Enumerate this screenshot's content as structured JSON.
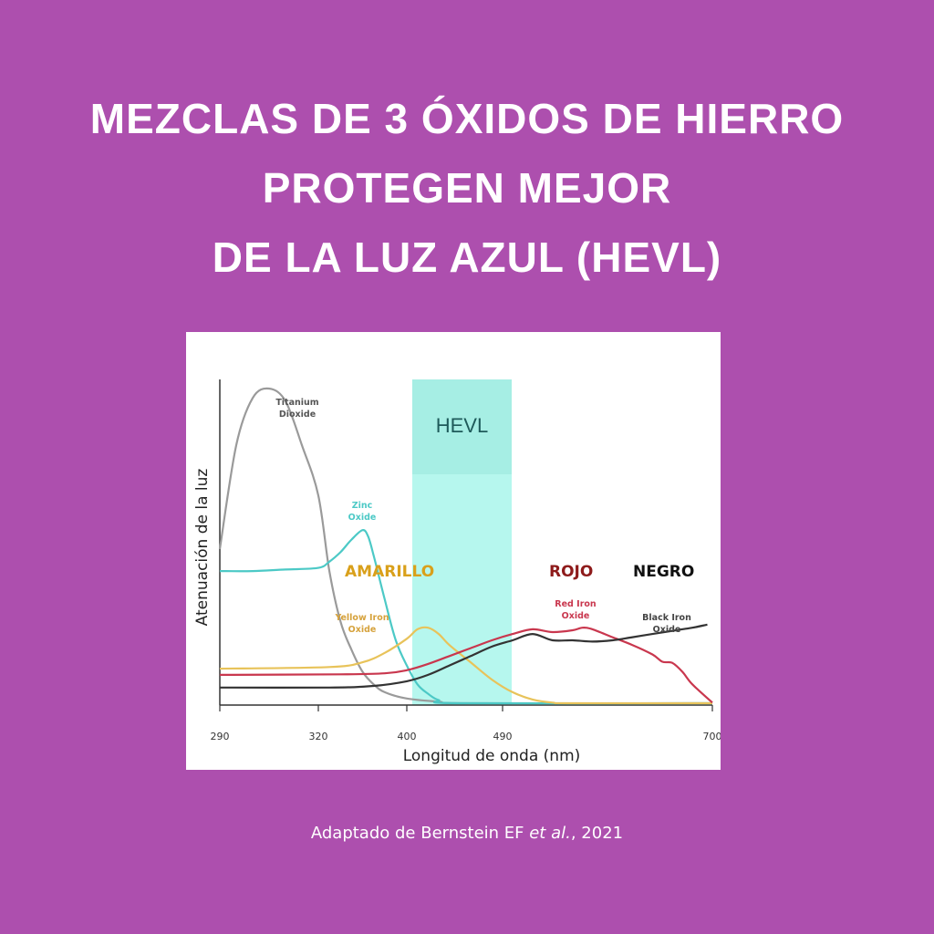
{
  "title": {
    "line1": "Mezclas de 3 óxidos de hierro",
    "line2": "protegen mejor",
    "line3": "de la luz azul (HEVL)"
  },
  "credit": {
    "prefix": "Adaptado de Bernstein EF ",
    "italic": "et al.",
    "suffix": ", 2021"
  },
  "chart_data": {
    "type": "line",
    "xlabel": "Longitud de onda (nm)",
    "ylabel": "Atenuación  de la luz",
    "x_ticks": [
      290,
      320,
      400,
      490,
      700
    ],
    "band": {
      "label": "HEVL",
      "x_range": [
        400,
        490
      ],
      "color": "#7ff5e3"
    },
    "y_range": [
      0,
      1
    ],
    "series": [
      {
        "name": "Titanium Dioxide",
        "label_lines": [
          "Titanium",
          "Dioxide"
        ],
        "color": "#9a9a9a",
        "points": [
          [
            290,
            0.49
          ],
          [
            295,
            0.82
          ],
          [
            300,
            0.97
          ],
          [
            305,
            1.0
          ],
          [
            310,
            0.96
          ],
          [
            315,
            0.82
          ],
          [
            320,
            0.66
          ],
          [
            330,
            0.42
          ],
          [
            340,
            0.26
          ],
          [
            350,
            0.17
          ],
          [
            360,
            0.1
          ],
          [
            370,
            0.06
          ],
          [
            380,
            0.035
          ],
          [
            400,
            0.015
          ],
          [
            430,
            0.005
          ],
          [
            460,
            0.0
          ],
          [
            700,
            0.0
          ]
        ]
      },
      {
        "name": "Zinc Oxide",
        "label_lines": [
          "Zinc",
          "Oxide"
        ],
        "color": "#4cc9c6",
        "points": [
          [
            290,
            0.42
          ],
          [
            300,
            0.42
          ],
          [
            310,
            0.425
          ],
          [
            320,
            0.43
          ],
          [
            330,
            0.45
          ],
          [
            340,
            0.48
          ],
          [
            350,
            0.52
          ],
          [
            360,
            0.55
          ],
          [
            365,
            0.53
          ],
          [
            370,
            0.47
          ],
          [
            380,
            0.33
          ],
          [
            390,
            0.2
          ],
          [
            400,
            0.12
          ],
          [
            410,
            0.06
          ],
          [
            420,
            0.03
          ],
          [
            430,
            0.01
          ],
          [
            450,
            0.0
          ],
          [
            700,
            0.0
          ]
        ]
      },
      {
        "name": "Yellow Iron Oxide",
        "label_lines": [
          "Yellow Iron",
          "Oxide"
        ],
        "color": "#e8c35a",
        "points": [
          [
            290,
            0.11
          ],
          [
            330,
            0.115
          ],
          [
            360,
            0.13
          ],
          [
            380,
            0.16
          ],
          [
            400,
            0.205
          ],
          [
            410,
            0.235
          ],
          [
            420,
            0.24
          ],
          [
            430,
            0.22
          ],
          [
            440,
            0.185
          ],
          [
            460,
            0.13
          ],
          [
            480,
            0.075
          ],
          [
            500,
            0.035
          ],
          [
            520,
            0.012
          ],
          [
            540,
            0.002
          ],
          [
            560,
            0.0
          ],
          [
            700,
            0.0
          ]
        ]
      },
      {
        "name": "Red Iron Oxide",
        "label_lines": [
          "Red Iron",
          "Oxide"
        ],
        "color": "#c9374e",
        "points": [
          [
            290,
            0.09
          ],
          [
            340,
            0.092
          ],
          [
            380,
            0.095
          ],
          [
            400,
            0.105
          ],
          [
            420,
            0.125
          ],
          [
            440,
            0.15
          ],
          [
            460,
            0.175
          ],
          [
            480,
            0.2
          ],
          [
            500,
            0.22
          ],
          [
            520,
            0.235
          ],
          [
            540,
            0.226
          ],
          [
            560,
            0.232
          ],
          [
            570,
            0.24
          ],
          [
            580,
            0.235
          ],
          [
            600,
            0.21
          ],
          [
            620,
            0.185
          ],
          [
            640,
            0.155
          ],
          [
            650,
            0.132
          ],
          [
            660,
            0.128
          ],
          [
            670,
            0.1
          ],
          [
            680,
            0.06
          ],
          [
            700,
            0.002
          ]
        ]
      },
      {
        "name": "Black Iron Oxide",
        "label_lines": [
          "Black Iron",
          "Oxide"
        ],
        "color": "#333333",
        "points": [
          [
            290,
            0.05
          ],
          [
            330,
            0.05
          ],
          [
            370,
            0.055
          ],
          [
            400,
            0.07
          ],
          [
            420,
            0.09
          ],
          [
            440,
            0.12
          ],
          [
            460,
            0.15
          ],
          [
            480,
            0.18
          ],
          [
            500,
            0.2
          ],
          [
            520,
            0.22
          ],
          [
            540,
            0.2
          ],
          [
            560,
            0.2
          ],
          [
            580,
            0.196
          ],
          [
            600,
            0.2
          ],
          [
            620,
            0.21
          ],
          [
            640,
            0.22
          ],
          [
            660,
            0.23
          ],
          [
            680,
            0.24
          ],
          [
            695,
            0.25
          ]
        ]
      }
    ],
    "annotations": [
      {
        "text": "AMARILLO",
        "color": "#d9a01b"
      },
      {
        "text": "ROJO",
        "color": "#8e1b1b"
      },
      {
        "text": "NEGRO",
        "color": "#111111"
      }
    ]
  }
}
